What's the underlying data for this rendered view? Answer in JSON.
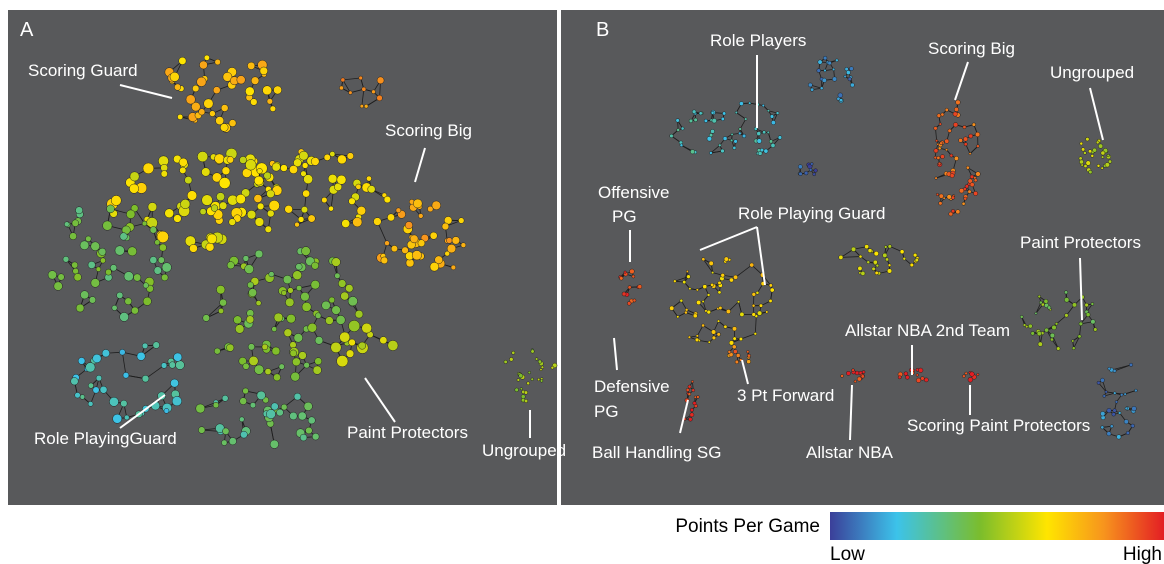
{
  "panels": [
    {
      "label": "A",
      "annotations": [
        {
          "lines": [
            "Scoring Guard"
          ]
        },
        {
          "lines": [
            "Scoring Big"
          ]
        },
        {
          "lines": [
            "Role PlayingGuard"
          ]
        },
        {
          "lines": [
            "Paint Protectors"
          ]
        },
        {
          "lines": [
            "Ungrouped"
          ]
        }
      ]
    },
    {
      "label": "B",
      "annotations": [
        {
          "lines": [
            "Role Players"
          ]
        },
        {
          "lines": [
            "Scoring Big"
          ]
        },
        {
          "lines": [
            "Ungrouped"
          ]
        },
        {
          "lines": [
            "Offensive",
            "PG"
          ]
        },
        {
          "lines": [
            "Role Playing Guard"
          ]
        },
        {
          "lines": [
            "Paint Protectors"
          ]
        },
        {
          "lines": [
            "Allstar NBA 2nd Team"
          ]
        },
        {
          "lines": [
            "Defensive",
            "PG"
          ]
        },
        {
          "lines": [
            "3 Pt Forward"
          ]
        },
        {
          "lines": [
            "Ball Handling SG"
          ]
        },
        {
          "lines": [
            "Allstar NBA"
          ]
        },
        {
          "lines": [
            "Scoring Paint Protectors"
          ]
        }
      ]
    }
  ],
  "colorbar": {
    "title": "Points Per Game",
    "low": "Low",
    "high": "High"
  }
}
